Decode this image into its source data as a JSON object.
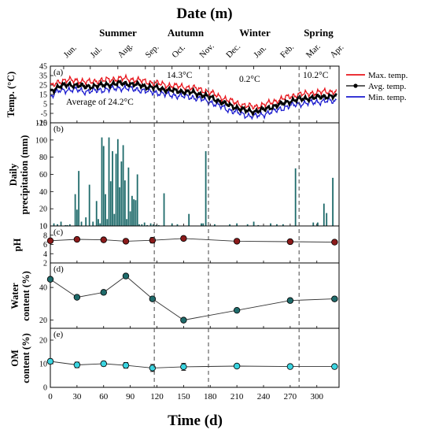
{
  "chart_data": [
    {
      "panel": "(a)",
      "type": "line",
      "ylabel": "Temp. (°C)",
      "ylim": [
        -15,
        45
      ],
      "yticks": [
        -15,
        -5,
        5,
        15,
        25,
        35,
        45
      ],
      "xlim": [
        0,
        325
      ],
      "legend": {
        "placement": "right",
        "entries": [
          "Max. temp.",
          "Avg. temp.",
          "Min. temp."
        ]
      },
      "colors": {
        "max": "#e8141b",
        "avg": "#000000",
        "min": "#1c1ccf"
      },
      "annotations": [
        "14.3°C",
        "0.2°C",
        "10.2°C",
        "Average of 24.2°C"
      ],
      "series_avg_anchor": {
        "x": [
          0,
          10,
          20,
          30,
          40,
          50,
          60,
          70,
          80,
          90,
          100,
          110,
          120,
          130,
          140,
          150,
          160,
          170,
          180,
          190,
          200,
          210,
          220,
          230,
          240,
          250,
          260,
          270,
          280,
          290,
          300,
          310,
          320
        ],
        "y": [
          18,
          24,
          25,
          25,
          23,
          24,
          25,
          26,
          27,
          26,
          25,
          23,
          22,
          20,
          19,
          18,
          17,
          15,
          12,
          8,
          4,
          1,
          -2,
          -3,
          -1,
          2,
          5,
          8,
          10,
          11,
          12,
          13,
          13
        ]
      },
      "max_offset": 5,
      "min_offset": -5
    },
    {
      "panel": "(b)",
      "type": "bar",
      "ylabel": "Daily precipitation (mm)",
      "ylim": [
        0,
        120
      ],
      "yticks": [
        0,
        20,
        40,
        60,
        80,
        100,
        120
      ],
      "color": "#1f6b6b",
      "x": [
        4,
        8,
        12,
        17,
        19,
        22,
        28,
        30,
        32,
        35,
        40,
        44,
        48,
        52,
        54,
        56,
        58,
        60,
        62,
        64,
        66,
        68,
        70,
        72,
        74,
        76,
        78,
        80,
        82,
        84,
        86,
        88,
        90,
        92,
        94,
        96,
        98,
        100,
        103,
        106,
        109,
        113,
        116,
        119,
        122,
        128,
        137,
        143,
        156,
        170,
        172,
        175,
        185,
        202,
        210,
        222,
        229,
        234,
        248,
        255,
        262,
        276,
        296,
        301,
        308,
        311,
        318
      ],
      "values": [
        3,
        2,
        5,
        1,
        1,
        2,
        37,
        19,
        64,
        5,
        10,
        48,
        5,
        29,
        8,
        3,
        103,
        93,
        37,
        8,
        103,
        52,
        87,
        14,
        84,
        101,
        45,
        75,
        94,
        53,
        8,
        68,
        17,
        35,
        31,
        30,
        60,
        2,
        2,
        4,
        1,
        3,
        2,
        1,
        1,
        38,
        3,
        2,
        14,
        3,
        3,
        87,
        2,
        2,
        3,
        2,
        5,
        1,
        3,
        2,
        2,
        67,
        4,
        4,
        26,
        15,
        56
      ]
    },
    {
      "panel": "(c)",
      "type": "scatter",
      "ylabel": "pH",
      "ylim": [
        2,
        10
      ],
      "yticks": [
        2,
        4,
        6,
        8,
        10
      ],
      "color": "#8b1a1a",
      "x": [
        0,
        30,
        60,
        85,
        115,
        150,
        210,
        270,
        320
      ],
      "values": [
        6.8,
        7.1,
        7.0,
        6.7,
        6.9,
        7.3,
        6.7,
        6.6,
        6.5
      ],
      "errors": [
        0.2,
        0.2,
        0.2,
        0.2,
        0.6,
        0.3,
        0.2,
        0.2,
        0.2
      ]
    },
    {
      "panel": "(d)",
      "type": "line",
      "ylabel": "Water content (%)",
      "ylim": [
        15,
        55
      ],
      "yticks": [
        20,
        40
      ],
      "color": "#1f6b6b",
      "x": [
        0,
        30,
        60,
        85,
        115,
        150,
        210,
        270,
        320
      ],
      "values": [
        45,
        34,
        37,
        47,
        33,
        20,
        26,
        32,
        33
      ]
    },
    {
      "panel": "(e)",
      "type": "scatter",
      "ylabel": "OM content (%)",
      "ylim": [
        0,
        25
      ],
      "yticks": [
        0,
        10,
        20
      ],
      "color": "#3ad4e0",
      "x": [
        0,
        30,
        60,
        85,
        115,
        150,
        210,
        270,
        320
      ],
      "values": [
        11,
        9.5,
        10,
        9.3,
        8.2,
        8.7,
        9,
        8.8,
        8.8
      ],
      "errors": [
        1,
        1.2,
        1,
        1.2,
        1.5,
        1.5,
        0.8,
        0.8,
        0.8
      ]
    }
  ],
  "shared": {
    "top_title": "Date (m)",
    "bottom_title": "Time (d)",
    "xticks": [
      0,
      30,
      60,
      90,
      120,
      150,
      180,
      210,
      240,
      270,
      300
    ],
    "seasons": [
      "Summer",
      "Autumn",
      "Winter",
      "Spring"
    ],
    "months": [
      "Jun.",
      "Jul.",
      "Aug.",
      "Sep.",
      "Oct.",
      "Nov.",
      "Dec.",
      "Jan.",
      "Feb.",
      "Mar.",
      "Apr."
    ],
    "season_dividers": [
      117,
      178,
      280
    ]
  }
}
